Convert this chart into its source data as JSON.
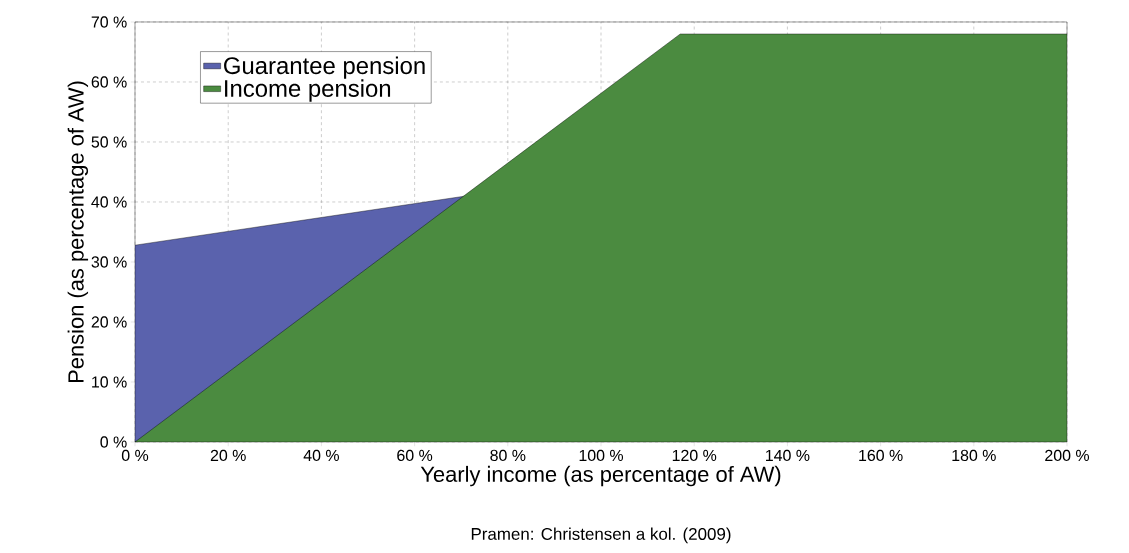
{
  "chart_data": {
    "type": "area",
    "xlabel": "Yearly income (as percentage of AW)",
    "ylabel": "Pension (as percentage of AW)",
    "annotations": [
      "Pramen: Christensen a kol. (2009)"
    ],
    "series": [
      {
        "name": "Guarantee pension",
        "color": "#5a62ad",
        "x": [
          0,
          71
        ],
        "values": [
          32.8,
          41
        ]
      },
      {
        "name": "Income pension",
        "color": "#4b8b40",
        "x": [
          0,
          117,
          200
        ],
        "values": [
          0,
          68,
          68
        ]
      }
    ],
    "xlim": [
      0,
      200
    ],
    "ylim": [
      0,
      70
    ],
    "xticks": [
      {
        "value": 0,
        "label": "0 %"
      },
      {
        "value": 20,
        "label": "20 %"
      },
      {
        "value": 40,
        "label": "40 %"
      },
      {
        "value": 60,
        "label": "60 %"
      },
      {
        "value": 80,
        "label": "80 %"
      },
      {
        "value": 100,
        "label": "100 %"
      },
      {
        "value": 120,
        "label": "120 %"
      },
      {
        "value": 140,
        "label": "140 %"
      },
      {
        "value": 160,
        "label": "160 %"
      },
      {
        "value": 180,
        "label": "180 %"
      },
      {
        "value": 200,
        "label": "200 %"
      }
    ],
    "yticks": [
      {
        "value": 0,
        "label": "0 %"
      },
      {
        "value": 10,
        "label": "10 %"
      },
      {
        "value": 20,
        "label": "20 %"
      },
      {
        "value": 30,
        "label": "30 %"
      },
      {
        "value": 40,
        "label": "40 %"
      },
      {
        "value": 50,
        "label": "50 %"
      },
      {
        "value": 60,
        "label": "60 %"
      },
      {
        "value": 70,
        "label": "70 %"
      }
    ],
    "grid": true,
    "legend": "top left"
  }
}
